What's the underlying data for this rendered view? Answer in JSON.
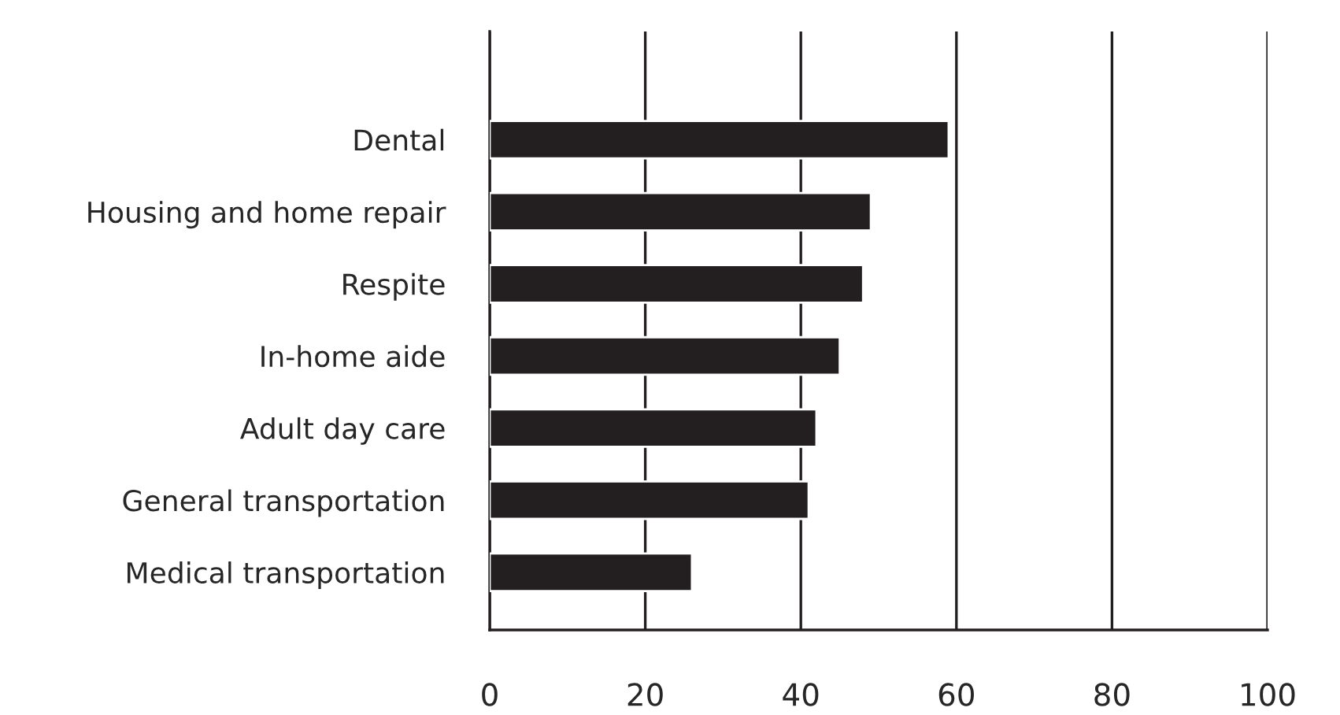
{
  "chart_data": {
    "type": "bar",
    "orientation": "horizontal",
    "categories": [
      "Dental",
      "Housing and home repair",
      "Respite",
      "In-home aide",
      "Adult day care",
      "General transportation",
      "Medical transportation"
    ],
    "values": [
      59,
      49,
      48,
      45,
      42,
      41,
      26
    ],
    "color": "#231f20",
    "xlim": [
      0,
      100
    ],
    "xticks": [
      0,
      20,
      40,
      60,
      80,
      100
    ],
    "grid": "x",
    "legend": false
  }
}
